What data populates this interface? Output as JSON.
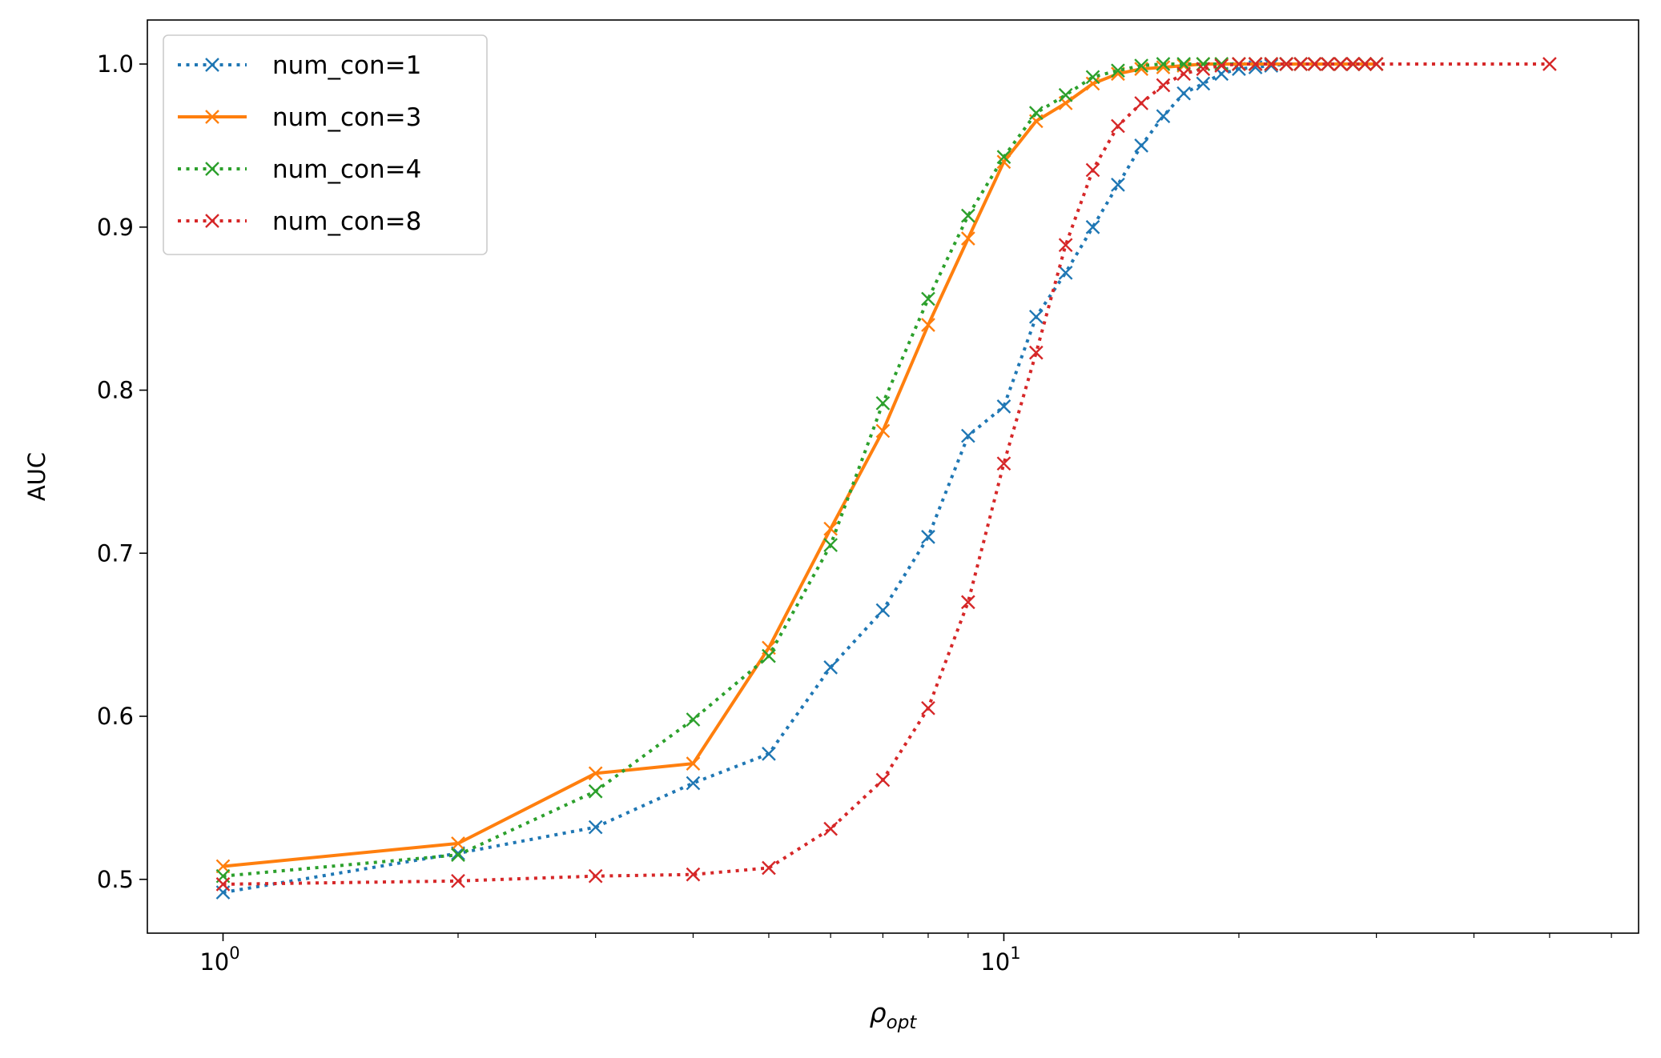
{
  "chart_data": {
    "type": "line",
    "title": "",
    "xlabel": {
      "base": "ρ",
      "sub": "opt"
    },
    "ylabel": "AUC",
    "xscale": "log",
    "xlim": [
      0.8,
      65
    ],
    "ylim": [
      0.467,
      1.027
    ],
    "x_major_ticks": [
      {
        "value": 1,
        "base": "10",
        "exp": "0"
      },
      {
        "value": 10,
        "base": "10",
        "exp": "1"
      }
    ],
    "x_minor_ticks": [
      2,
      3,
      4,
      5,
      6,
      7,
      8,
      9,
      20,
      30,
      40,
      50,
      60
    ],
    "y_ticks": [
      {
        "value": 0.5,
        "label": "0.5"
      },
      {
        "value": 0.6,
        "label": "0.6"
      },
      {
        "value": 0.7,
        "label": "0.7"
      },
      {
        "value": 0.8,
        "label": "0.8"
      },
      {
        "value": 0.9,
        "label": "0.9"
      },
      {
        "value": 1.0,
        "label": "1.0"
      }
    ],
    "grid": false,
    "legend_position": "top-left",
    "series": [
      {
        "name": "num_con=1",
        "color": "#1f77b4",
        "style": "dotted",
        "marker": "x",
        "points": [
          [
            1,
            0.492
          ],
          [
            2,
            0.516
          ],
          [
            3,
            0.532
          ],
          [
            4,
            0.559
          ],
          [
            5,
            0.577
          ],
          [
            6,
            0.63
          ],
          [
            7,
            0.665
          ],
          [
            8,
            0.71
          ],
          [
            9,
            0.772
          ],
          [
            10,
            0.79
          ],
          [
            11,
            0.845
          ],
          [
            12,
            0.872
          ],
          [
            13,
            0.9
          ],
          [
            14,
            0.926
          ],
          [
            15,
            0.95
          ],
          [
            16,
            0.968
          ],
          [
            17,
            0.982
          ],
          [
            18,
            0.988
          ],
          [
            19,
            0.994
          ],
          [
            20,
            0.997
          ],
          [
            21,
            0.998
          ],
          [
            22,
            0.999
          ],
          [
            23,
            1.0
          ],
          [
            24,
            1.0
          ],
          [
            25,
            1.0
          ],
          [
            26,
            1.0
          ],
          [
            27,
            1.0
          ],
          [
            28,
            1.0
          ],
          [
            29,
            1.0
          ],
          [
            30,
            1.0
          ]
        ]
      },
      {
        "name": "num_con=3",
        "color": "#ff7f0e",
        "style": "solid",
        "marker": "x",
        "points": [
          [
            1,
            0.508
          ],
          [
            2,
            0.522
          ],
          [
            3,
            0.565
          ],
          [
            4,
            0.571
          ],
          [
            5,
            0.642
          ],
          [
            6,
            0.715
          ],
          [
            7,
            0.775
          ],
          [
            8,
            0.84
          ],
          [
            9,
            0.893
          ],
          [
            10,
            0.94
          ],
          [
            11,
            0.965
          ],
          [
            12,
            0.976
          ],
          [
            13,
            0.988
          ],
          [
            14,
            0.994
          ],
          [
            15,
            0.997
          ],
          [
            16,
            0.998
          ],
          [
            17,
            0.999
          ],
          [
            18,
            1.0
          ],
          [
            19,
            1.0
          ],
          [
            20,
            1.0
          ],
          [
            21,
            1.0
          ],
          [
            22,
            1.0
          ],
          [
            23,
            1.0
          ],
          [
            24,
            1.0
          ],
          [
            25,
            1.0
          ],
          [
            26,
            1.0
          ],
          [
            27,
            1.0
          ],
          [
            28,
            1.0
          ],
          [
            29,
            1.0
          ],
          [
            30,
            1.0
          ]
        ]
      },
      {
        "name": "num_con=4",
        "color": "#2ca02c",
        "style": "dotted",
        "marker": "x",
        "points": [
          [
            1,
            0.502
          ],
          [
            2,
            0.515
          ],
          [
            3,
            0.554
          ],
          [
            4,
            0.598
          ],
          [
            5,
            0.637
          ],
          [
            6,
            0.705
          ],
          [
            7,
            0.792
          ],
          [
            8,
            0.856
          ],
          [
            9,
            0.907
          ],
          [
            10,
            0.943
          ],
          [
            11,
            0.97
          ],
          [
            12,
            0.981
          ],
          [
            13,
            0.992
          ],
          [
            14,
            0.996
          ],
          [
            15,
            0.999
          ],
          [
            16,
            1.0
          ],
          [
            17,
            1.0
          ],
          [
            18,
            1.0
          ],
          [
            19,
            1.0
          ],
          [
            20,
            1.0
          ],
          [
            21,
            1.0
          ],
          [
            22,
            1.0
          ],
          [
            23,
            1.0
          ],
          [
            24,
            1.0
          ],
          [
            25,
            1.0
          ],
          [
            26,
            1.0
          ],
          [
            27,
            1.0
          ],
          [
            28,
            1.0
          ],
          [
            29,
            1.0
          ],
          [
            30,
            1.0
          ]
        ]
      },
      {
        "name": "num_con=8",
        "color": "#d62728",
        "style": "dotted",
        "marker": "x",
        "points": [
          [
            1,
            0.497
          ],
          [
            2,
            0.499
          ],
          [
            3,
            0.502
          ],
          [
            4,
            0.503
          ],
          [
            5,
            0.507
          ],
          [
            6,
            0.531
          ],
          [
            7,
            0.561
          ],
          [
            8,
            0.605
          ],
          [
            9,
            0.67
          ],
          [
            10,
            0.755
          ],
          [
            11,
            0.823
          ],
          [
            12,
            0.889
          ],
          [
            13,
            0.935
          ],
          [
            14,
            0.962
          ],
          [
            15,
            0.976
          ],
          [
            16,
            0.987
          ],
          [
            17,
            0.994
          ],
          [
            18,
            0.997
          ],
          [
            19,
            0.999
          ],
          [
            20,
            1.0
          ],
          [
            21,
            1.0
          ],
          [
            22,
            1.0
          ],
          [
            23,
            1.0
          ],
          [
            24,
            1.0
          ],
          [
            25,
            1.0
          ],
          [
            26,
            1.0
          ],
          [
            27,
            1.0
          ],
          [
            28,
            1.0
          ],
          [
            29,
            1.0
          ],
          [
            30,
            1.0
          ],
          [
            50,
            1.0
          ]
        ]
      }
    ]
  }
}
